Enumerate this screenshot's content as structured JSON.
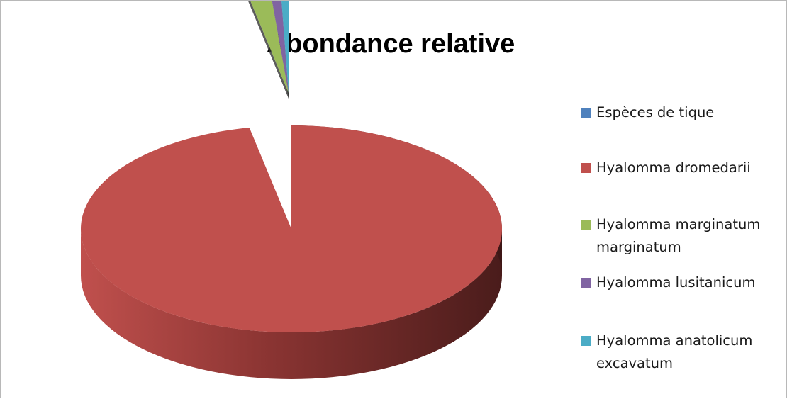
{
  "chart_data": {
    "type": "pie",
    "title": "Abondance relative",
    "categories": [
      "Espèces de tique",
      "Hyalomma dromedarii",
      "Hyalomma marginatum marginatum",
      "Hyalomma lusitanicum",
      "Hyalomma anatolicum excavatum"
    ],
    "values": [
      0,
      96.8,
      1.8,
      0.8,
      0.6
    ],
    "colors": [
      "#4f81bd",
      "#c0504d",
      "#9bbb59",
      "#8064a2",
      "#4bacc6"
    ],
    "legend_position": "right",
    "style": "3d-pie"
  }
}
